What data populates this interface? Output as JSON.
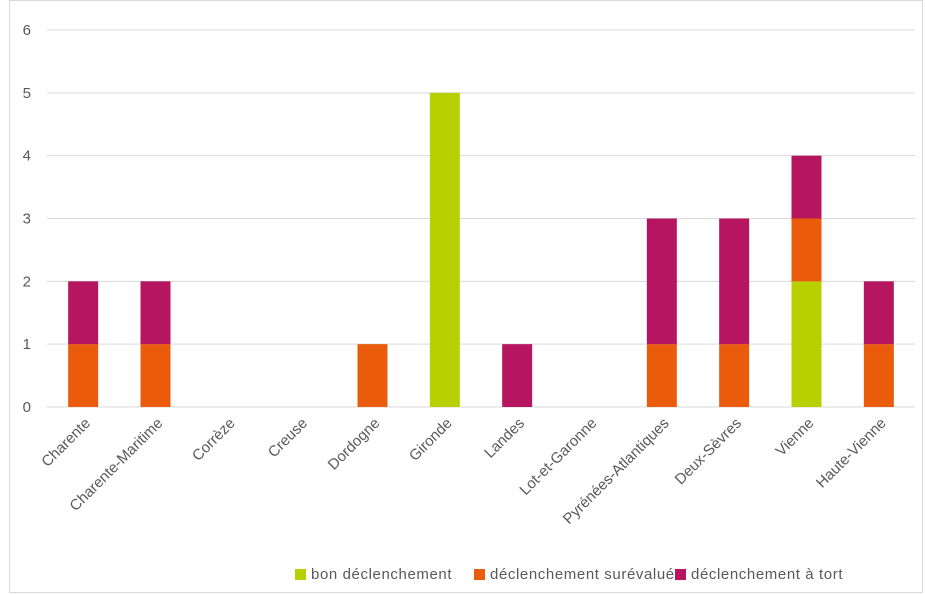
{
  "chart_data": {
    "type": "bar",
    "stacked": true,
    "categories": [
      "Charente",
      "Charente-Maritime",
      "Corrèze",
      "Creuse",
      "Dordogne",
      "Gironde",
      "Landes",
      "Lot-et-Garonne",
      "Pyrénées-Atlantiques",
      "Deux-Sèvres",
      "Vienne",
      "Haute-Vienne"
    ],
    "series": [
      {
        "name": "bon déclenchement",
        "color": "#b8cf00",
        "values": [
          0,
          0,
          0,
          0,
          0,
          5,
          0,
          0,
          0,
          0,
          2,
          0
        ]
      },
      {
        "name": "déclenchement surévalué",
        "color": "#ea5b0c",
        "values": [
          1,
          1,
          0,
          0,
          1,
          0,
          0,
          0,
          1,
          1,
          1,
          1
        ]
      },
      {
        "name": "déclenchement à tort",
        "color": "#b5165f",
        "values": [
          1,
          1,
          0,
          0,
          0,
          0,
          1,
          0,
          2,
          2,
          1,
          1
        ]
      }
    ],
    "yticks": [
      "0",
      "1",
      "2",
      "3",
      "4",
      "5",
      "6"
    ],
    "ylim": [
      0,
      6
    ],
    "grid": true,
    "legend_position": "bottom"
  }
}
